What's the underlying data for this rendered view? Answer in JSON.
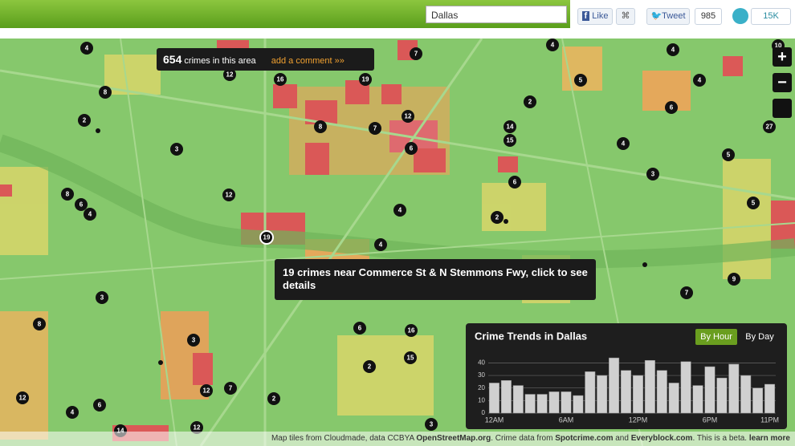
{
  "header": {
    "search": "Dallas",
    "like": "Like",
    "tweet": "Tweet",
    "tweet_count": "985",
    "share_count": "15K"
  },
  "map": {
    "markers": [
      "4",
      "7",
      "4",
      "4",
      "10",
      "12",
      "16",
      "19",
      "8",
      "5",
      "4",
      "2",
      "6",
      "2",
      "12",
      "8",
      "7",
      "14",
      "15",
      "27",
      "6",
      "4",
      "3",
      "5",
      "6",
      "3",
      "8",
      "12",
      "6",
      "4",
      "4",
      "2",
      "5",
      "4",
      "9",
      "7",
      "3",
      "8",
      "6",
      "16",
      "3",
      "15",
      "2",
      "12",
      "7",
      "2",
      "12",
      "6",
      "4",
      "14",
      "12",
      "3",
      "19"
    ],
    "area_tooltip": {
      "count": "654",
      "text": "crimes in this area",
      "action": "add a comment »»"
    },
    "hover_tooltip": "19 crimes near Commerce St & N Stemmons Fwy, click to see details",
    "zoom": [
      "+",
      "−"
    ],
    "attribution": [
      "Map tiles from Cloudmade, data CCBYA",
      "OpenStreetMap.org",
      ". Crime data from",
      "Spotcrime.com",
      "and",
      "Everyblock.com",
      ". This is a beta.",
      "learn more"
    ]
  },
  "chart_data": {
    "type": "bar",
    "title": "Crime Trends in Dallas",
    "buttons": [
      "By Hour",
      "By Day"
    ],
    "categories": [
      "12AM",
      null,
      null,
      null,
      null,
      null,
      "6AM",
      null,
      null,
      null,
      null,
      null,
      "12PM",
      null,
      null,
      null,
      null,
      null,
      "6PM",
      null,
      null,
      null,
      null,
      "11PM"
    ],
    "values": [
      24,
      26,
      22,
      15,
      15,
      17,
      17,
      14,
      33,
      30,
      44,
      34,
      30,
      42,
      34,
      24,
      41,
      22,
      37,
      28,
      39,
      30,
      20,
      23
    ],
    "color": "#d0d0d0",
    "ylim": [
      0,
      46
    ],
    "yticks": [
      0,
      10,
      20,
      30,
      40
    ],
    "grid": true
  }
}
